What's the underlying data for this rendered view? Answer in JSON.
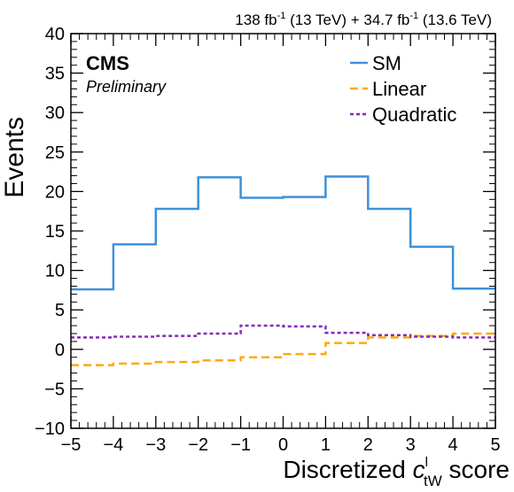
{
  "chart_data": {
    "type": "line",
    "drawstyle": "step",
    "top_label": {
      "lumi1": "138 fb",
      "exp1": "-1",
      "energy1": " (13 TeV) + 34.7 fb",
      "exp2": "-1",
      "energy2": " (13.6 TeV)"
    },
    "experiment": "CMS",
    "status": "Preliminary",
    "ylabel": "Events",
    "xlabel": {
      "prefix": "Discretized ",
      "var": "c",
      "sup": "l",
      "sub": "tW",
      "suffix": " score"
    },
    "xlim": [
      -5,
      5
    ],
    "ylim": [
      -10,
      40
    ],
    "x_ticks": [
      "−5",
      "−4",
      "−3",
      "−2",
      "−1",
      "0",
      "1",
      "2",
      "3",
      "4",
      "5"
    ],
    "y_ticks": [
      "−10",
      "−5",
      "0",
      "5",
      "10",
      "15",
      "20",
      "25",
      "30",
      "35",
      "40"
    ],
    "bin_edges": [
      -5,
      -4,
      -3,
      -2,
      -1,
      0,
      1,
      2,
      3,
      4,
      5
    ],
    "legend_position": "top-right",
    "series": [
      {
        "name": "SM",
        "color": "#3f90da",
        "dash": "solid",
        "values": [
          7.6,
          13.3,
          17.8,
          21.8,
          19.2,
          19.3,
          21.9,
          17.8,
          13.0,
          7.7
        ]
      },
      {
        "name": "Linear",
        "color": "#ffa90e",
        "dash": "dashed",
        "values": [
          -2.0,
          -1.8,
          -1.6,
          -1.4,
          -1.0,
          -0.6,
          0.8,
          1.5,
          1.7,
          2.0
        ]
      },
      {
        "name": "Quadratic",
        "color": "#832db6",
        "dash": "dotted",
        "values": [
          1.5,
          1.6,
          1.7,
          2.0,
          3.0,
          2.9,
          2.1,
          1.8,
          1.6,
          1.5
        ]
      }
    ]
  }
}
